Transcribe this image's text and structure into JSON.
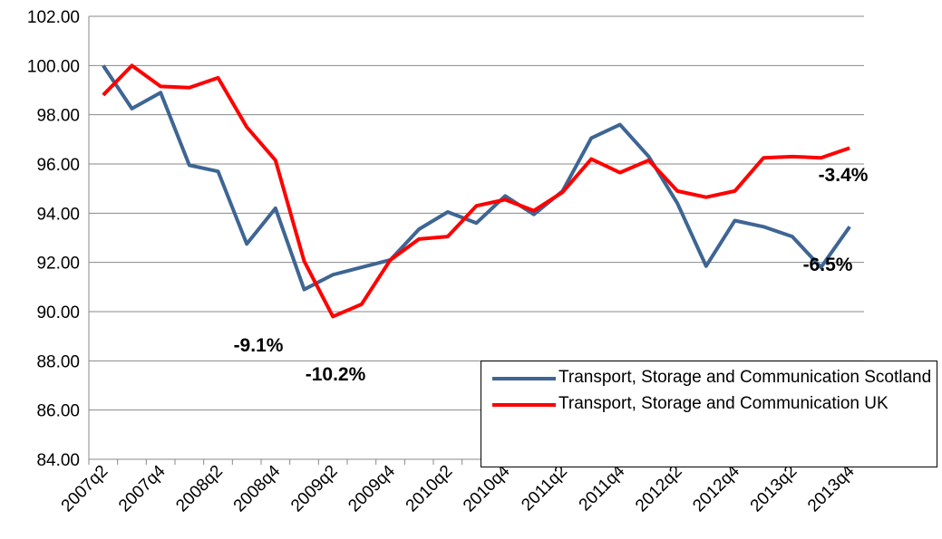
{
  "chart_data": {
    "type": "line",
    "categories": [
      "2007q2",
      null,
      "2007q4",
      null,
      "2008q2",
      null,
      "2008q4",
      null,
      "2009q2",
      null,
      "2009q4",
      null,
      "2010q2",
      null,
      "2010q4",
      null,
      "2011q2",
      null,
      "2011q4",
      null,
      "2012q2",
      null,
      "2012q4",
      null,
      "2013q2",
      null,
      "2013q4"
    ],
    "series": [
      {
        "name": "Transport, Storage and Communication Scotland",
        "color": "#3e6593",
        "values": [
          100.0,
          98.25,
          98.9,
          95.95,
          95.7,
          92.75,
          94.2,
          90.9,
          91.5,
          91.8,
          92.1,
          93.35,
          94.05,
          93.6,
          94.7,
          93.95,
          94.9,
          97.05,
          97.6,
          96.3,
          94.4,
          91.85,
          93.7,
          93.45,
          93.05,
          91.8,
          93.45
        ]
      },
      {
        "name": "Transport, Storage and Communication UK",
        "color": "#ff0000",
        "values": [
          98.8,
          100.0,
          99.15,
          99.1,
          99.5,
          97.5,
          96.15,
          92.05,
          89.8,
          90.3,
          92.1,
          92.95,
          93.05,
          94.3,
          94.55,
          94.1,
          94.85,
          96.2,
          95.65,
          96.15,
          94.9,
          94.65,
          94.9,
          96.25,
          96.3,
          96.25,
          96.65
        ]
      }
    ],
    "ylim": [
      84,
      102
    ],
    "yticks": [
      {
        "value": 84,
        "label": "84.00"
      },
      {
        "value": 86,
        "label": "86.00"
      },
      {
        "value": 88,
        "label": "88.00"
      },
      {
        "value": 90,
        "label": "90.00"
      },
      {
        "value": 92,
        "label": "92.00"
      },
      {
        "value": 94,
        "label": "94.00"
      },
      {
        "value": 96,
        "label": "96.00"
      },
      {
        "value": 98,
        "label": "98.00"
      },
      {
        "value": 100,
        "label": "100.00"
      },
      {
        "value": 102,
        "label": "102.00"
      }
    ],
    "grid": true,
    "annotations": [
      "-9.1%",
      "-10.2%",
      "-3.4%",
      "-6.5%"
    ],
    "legend": "lower right"
  }
}
